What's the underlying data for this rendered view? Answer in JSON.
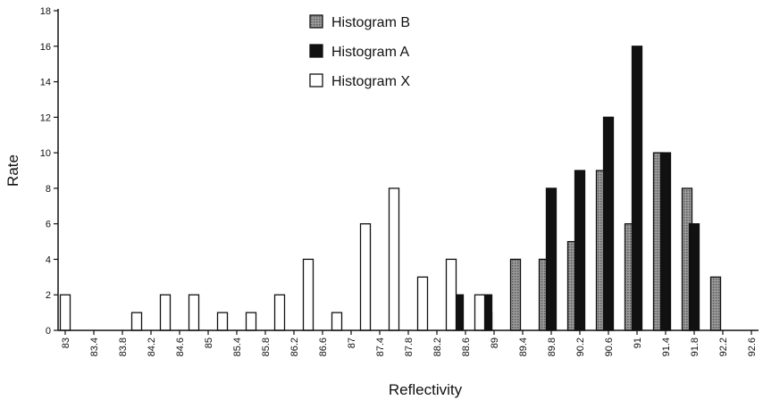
{
  "chart_data": {
    "type": "bar",
    "title": "",
    "xlabel": "Reflectivity",
    "ylabel": "Rate",
    "ylim": [
      0,
      18
    ],
    "yticks": [
      0,
      2,
      4,
      6,
      8,
      10,
      12,
      14,
      16,
      18
    ],
    "xlim": [
      82.9,
      92.7
    ],
    "xticks": [
      "83",
      "83.4",
      "83.8",
      "84.2",
      "84.6",
      "85",
      "85.4",
      "85.8",
      "86.2",
      "86.6",
      "87",
      "87.4",
      "87.8",
      "88.2",
      "88.6",
      "89",
      "89.4",
      "89.8",
      "90.2",
      "90.6",
      "91",
      "91.4",
      "91.8",
      "92.2",
      "92.6"
    ],
    "grid": false,
    "legend": "top-center",
    "series": [
      {
        "name": "Histogram B",
        "fill": "#8a8a8a",
        "pattern": "dotted",
        "x": [
          88.9,
          89.3,
          89.7,
          90.1,
          90.5,
          90.9,
          91.3,
          91.7,
          92.1
        ],
        "values": [
          1,
          4,
          4,
          5,
          9,
          6,
          10,
          8,
          3
        ]
      },
      {
        "name": "Histogram A",
        "fill": "#111111",
        "x": [
          88.5,
          88.9,
          89.8,
          90.2,
          90.6,
          91.0,
          91.4,
          91.8
        ],
        "values": [
          2,
          2,
          8,
          9,
          12,
          16,
          10,
          6
        ]
      },
      {
        "name": "Histogram X",
        "fill": "#ffffff",
        "x": [
          83.0,
          84.0,
          84.4,
          84.8,
          85.2,
          85.6,
          86.0,
          86.4,
          86.8,
          87.2,
          87.6,
          88.0,
          88.4,
          88.8
        ],
        "values": [
          2,
          1,
          2,
          2,
          1,
          1,
          2,
          4,
          1,
          6,
          8,
          3,
          4,
          2
        ]
      }
    ]
  }
}
